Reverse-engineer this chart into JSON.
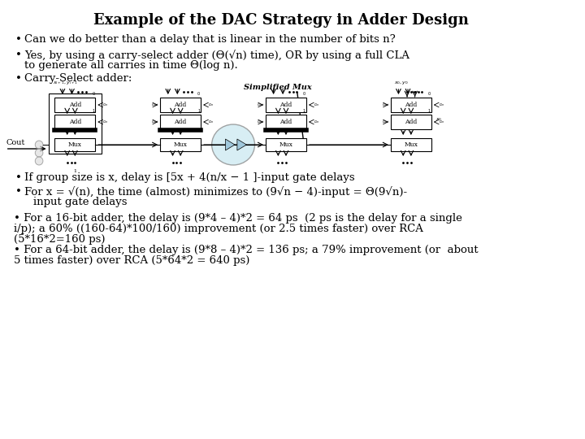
{
  "title": "Example of the DAC Strategy in Adder Design",
  "background_color": "#ffffff",
  "title_fontsize": 13,
  "text_fontsize": 9.5,
  "small_fontsize": 5.5,
  "tiny_fontsize": 4.5,
  "diagram_label_mux": "Simplified Mux",
  "diagram_label_cout": "Cout",
  "bullet1": "Can we do better than a delay that is linear in the number of bits n?",
  "bullet2_line1": "Yes, by using a carry-select adder (Θ(√n) time), OR by using a full CLA",
  "bullet2_line2": "to generate all carries in time Θ(log n).",
  "bullet3": "Carry-Select adder:",
  "bullet4": "If group size is x, delay is [5x + 4(n/x − 1 ]-input gate delays",
  "bullet5_line1": "For x = √(n), the time (almost) minimizes to (9√n − 4)-input = Θ(9√n)-",
  "bullet5_line2": "input gate delays",
  "text_block_line1": "• For a 16-bit adder, the delay is (9*4 – 4)*2 = 64 ps  (2 ps is the delay for a single",
  "text_block_line2": "i/p); a 60% ((160-64)*100/160) improvement (or 2.5 times faster) over RCA",
  "text_block_line3": "(5*16*2=160 ps)",
  "text_block_line4": "• For a 64-bit adder, the delay is (9*8 – 4)*2 = 136 ps; a 79% improvement (or  about",
  "text_block_line5": "5 times faster) over RCA (5*64*2 = 640 ps)"
}
